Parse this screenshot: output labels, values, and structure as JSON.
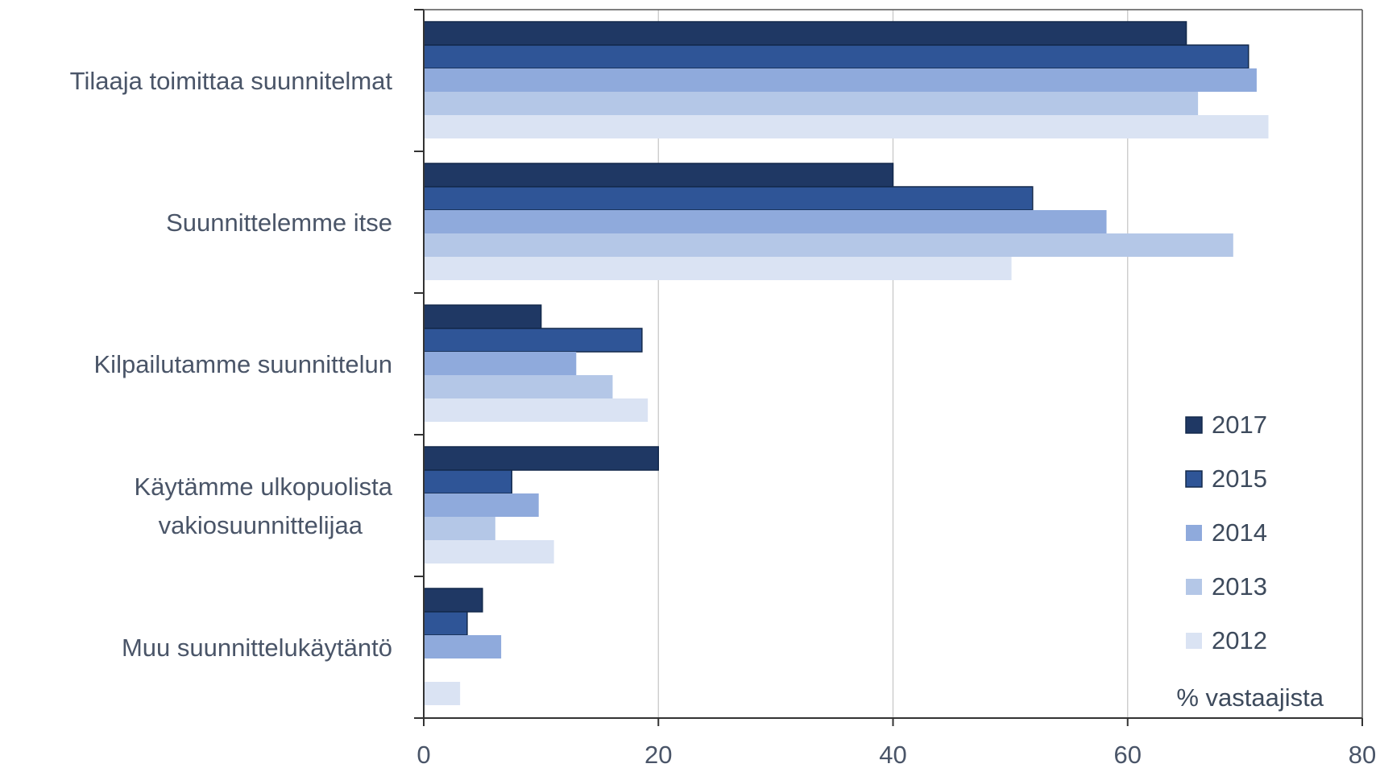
{
  "chart_data": {
    "type": "bar",
    "orientation": "horizontal",
    "categories": [
      [
        "Tilaaja toimittaa suunnitelmat"
      ],
      [
        "Suunnittelemme itse"
      ],
      [
        "Kilpailutamme suunnittelun"
      ],
      [
        "Käytämme ulkopuolista",
        "vakiosuunnittelijaa"
      ],
      [
        "Muu suunnittelukäytäntö"
      ]
    ],
    "series": [
      {
        "name": "2017",
        "color": "#1f3864",
        "values": [
          65,
          40,
          10,
          20,
          5
        ]
      },
      {
        "name": "2015",
        "color": "#2f5597",
        "values": [
          70.3,
          51.9,
          18.6,
          7.5,
          3.7
        ]
      },
      {
        "name": "2014",
        "color": "#8faadc",
        "values": [
          71,
          58.2,
          13,
          9.8,
          6.6
        ]
      },
      {
        "name": "2013",
        "color": "#b4c7e7",
        "values": [
          66,
          69,
          16.1,
          6.1,
          null
        ]
      },
      {
        "name": "2012",
        "color": "#dae3f3",
        "values": [
          72,
          50.1,
          19.1,
          11.1,
          3.1
        ]
      }
    ],
    "xlim": [
      0,
      80
    ],
    "xticks": [
      0,
      20,
      40,
      60,
      80
    ],
    "xgrid": true,
    "unit_label": "% vastaajista",
    "legend_position": "bottom-right"
  }
}
